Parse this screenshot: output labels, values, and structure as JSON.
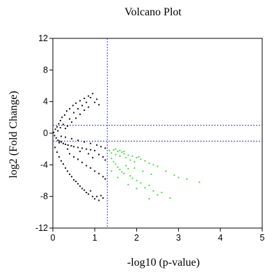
{
  "chart_data": {
    "type": "scatter",
    "title": "Volcano Plot",
    "xlabel": "-log10 (p-value)",
    "ylabel": "log2  (Fold Change)",
    "xlim": [
      0,
      5
    ],
    "ylim": [
      -12,
      12
    ],
    "x_ticks": [
      "0",
      "1",
      "2",
      "3",
      "4",
      "5"
    ],
    "y_ticks": [
      "-12",
      "-8",
      "-4",
      "0",
      "4",
      "8",
      "12"
    ],
    "grid": false,
    "thresholds": {
      "x": [
        1.3
      ],
      "y": [
        1,
        -1
      ],
      "style": "dotted",
      "color": "#3a3ab8"
    },
    "colors": {
      "significant": "#44dd44",
      "not_significant": "#111111",
      "threshold": "#3a3ab8"
    },
    "series": [
      {
        "color": "#44dd44",
        "points": [
          [
            1.35,
            -2.2
          ],
          [
            1.4,
            -2.5
          ],
          [
            1.45,
            -2.1
          ],
          [
            1.5,
            -2.7
          ],
          [
            1.55,
            -2.3
          ],
          [
            1.6,
            -2.9
          ],
          [
            1.65,
            -2.4
          ],
          [
            1.7,
            -2.6
          ],
          [
            1.75,
            -3.1
          ],
          [
            1.8,
            -2.8
          ],
          [
            1.85,
            -3.4
          ],
          [
            1.9,
            -2.9
          ],
          [
            1.95,
            -3.6
          ],
          [
            2.0,
            -3.1
          ],
          [
            2.05,
            -3.0
          ],
          [
            2.1,
            -3.3
          ],
          [
            2.2,
            -3.5
          ],
          [
            2.3,
            -3.8
          ],
          [
            2.4,
            -4.0
          ],
          [
            2.5,
            -4.2
          ],
          [
            2.7,
            -4.8
          ],
          [
            2.9,
            -5.3
          ],
          [
            3.2,
            -5.8
          ],
          [
            3.5,
            -6.2
          ],
          [
            1.4,
            -3.2
          ],
          [
            1.45,
            -3.6
          ],
          [
            1.5,
            -3.9
          ],
          [
            1.55,
            -4.3
          ],
          [
            1.6,
            -4.6
          ],
          [
            1.65,
            -4.9
          ],
          [
            1.7,
            -5.1
          ],
          [
            1.75,
            -4.1
          ],
          [
            1.8,
            -4.5
          ],
          [
            1.85,
            -5.4
          ],
          [
            1.9,
            -5.7
          ],
          [
            2.0,
            -6.0
          ],
          [
            2.1,
            -6.3
          ],
          [
            2.2,
            -6.9
          ],
          [
            2.3,
            -6.6
          ],
          [
            2.4,
            -7.3
          ],
          [
            2.5,
            -7.8
          ],
          [
            2.6,
            -7.5
          ],
          [
            2.8,
            -8.2
          ],
          [
            1.5,
            -2.0
          ],
          [
            1.6,
            -2.2
          ],
          [
            1.7,
            -2.3
          ],
          [
            1.4,
            -4.8
          ],
          [
            1.55,
            -5.6
          ],
          [
            1.95,
            -4.4
          ],
          [
            2.15,
            -4.8
          ],
          [
            2.35,
            -5.2
          ],
          [
            1.8,
            -6.5
          ],
          [
            2.0,
            -7.0
          ],
          [
            2.3,
            -8.3
          ],
          [
            3.0,
            -5.6
          ]
        ]
      },
      {
        "color": "#111111",
        "points": [
          [
            0.02,
            0.1
          ],
          [
            0.04,
            -0.3
          ],
          [
            0.06,
            0.5
          ],
          [
            0.08,
            -0.6
          ],
          [
            0.1,
            0.8
          ],
          [
            0.12,
            -0.9
          ],
          [
            0.14,
            1.2
          ],
          [
            0.16,
            -1.0
          ],
          [
            0.18,
            1.6
          ],
          [
            0.2,
            -1.1
          ],
          [
            0.22,
            2.0
          ],
          [
            0.25,
            -1.3
          ],
          [
            0.28,
            2.3
          ],
          [
            0.3,
            -1.4
          ],
          [
            0.33,
            2.8
          ],
          [
            0.36,
            -1.5
          ],
          [
            0.4,
            3.1
          ],
          [
            0.44,
            -1.6
          ],
          [
            0.48,
            3.5
          ],
          [
            0.5,
            -1.7
          ],
          [
            0.55,
            3.8
          ],
          [
            0.6,
            -1.8
          ],
          [
            0.65,
            4.1
          ],
          [
            0.7,
            -1.9
          ],
          [
            0.75,
            4.4
          ],
          [
            0.8,
            -2.0
          ],
          [
            0.85,
            4.7
          ],
          [
            0.9,
            -2.1
          ],
          [
            0.95,
            5.0
          ],
          [
            1.0,
            -2.2
          ],
          [
            0.3,
            0.6
          ],
          [
            0.35,
            0.9
          ],
          [
            0.45,
            1.4
          ],
          [
            0.55,
            1.9
          ],
          [
            0.65,
            2.4
          ],
          [
            0.75,
            2.9
          ],
          [
            0.85,
            3.3
          ],
          [
            1.0,
            3.9
          ],
          [
            1.05,
            4.3
          ],
          [
            1.1,
            3.6
          ],
          [
            0.05,
            -1.8
          ],
          [
            0.1,
            -2.4
          ],
          [
            0.15,
            -3.0
          ],
          [
            0.2,
            -3.5
          ],
          [
            0.25,
            -3.9
          ],
          [
            0.3,
            -4.4
          ],
          [
            0.35,
            -4.8
          ],
          [
            0.4,
            -5.2
          ],
          [
            0.45,
            -5.5
          ],
          [
            0.5,
            -5.9
          ],
          [
            0.55,
            -6.1
          ],
          [
            0.6,
            -6.4
          ],
          [
            0.65,
            -6.7
          ],
          [
            0.7,
            -7.0
          ],
          [
            0.75,
            -7.2
          ],
          [
            0.8,
            -7.5
          ],
          [
            0.85,
            -7.7
          ],
          [
            0.9,
            -7.3
          ],
          [
            0.95,
            -8.0
          ],
          [
            1.0,
            -8.3
          ],
          [
            1.05,
            -8.0
          ],
          [
            1.1,
            -8.5
          ],
          [
            1.15,
            -7.9
          ],
          [
            1.2,
            -8.2
          ],
          [
            0.4,
            -2.6
          ],
          [
            0.5,
            -3.0
          ],
          [
            0.6,
            -3.3
          ],
          [
            0.7,
            -3.7
          ],
          [
            0.8,
            -4.1
          ],
          [
            0.9,
            -4.4
          ],
          [
            1.0,
            -4.8
          ],
          [
            1.1,
            -5.1
          ],
          [
            1.2,
            -5.5
          ],
          [
            1.25,
            -5.8
          ],
          [
            0.2,
            -0.4
          ],
          [
            0.3,
            -0.5
          ],
          [
            0.45,
            -0.7
          ],
          [
            0.6,
            -0.9
          ],
          [
            0.75,
            -1.1
          ],
          [
            0.9,
            -1.3
          ],
          [
            1.05,
            -1.5
          ],
          [
            1.15,
            -1.7
          ],
          [
            1.25,
            -1.9
          ],
          [
            1.1,
            -2.7
          ],
          [
            1.2,
            -3.0
          ],
          [
            1.25,
            -3.4
          ],
          [
            0.95,
            -3.1
          ],
          [
            0.85,
            -2.6
          ],
          [
            0.65,
            -2.3
          ],
          [
            0.35,
            -2.0
          ],
          [
            0.15,
            -1.2
          ],
          [
            0.12,
            0.3
          ],
          [
            0.18,
            0.7
          ],
          [
            0.25,
            1.1
          ],
          [
            0.4,
            1.8
          ],
          [
            0.5,
            2.6
          ],
          [
            0.6,
            3.1
          ],
          [
            0.7,
            3.5
          ],
          [
            0.8,
            3.9
          ],
          [
            0.9,
            4.5
          ]
        ]
      }
    ]
  }
}
